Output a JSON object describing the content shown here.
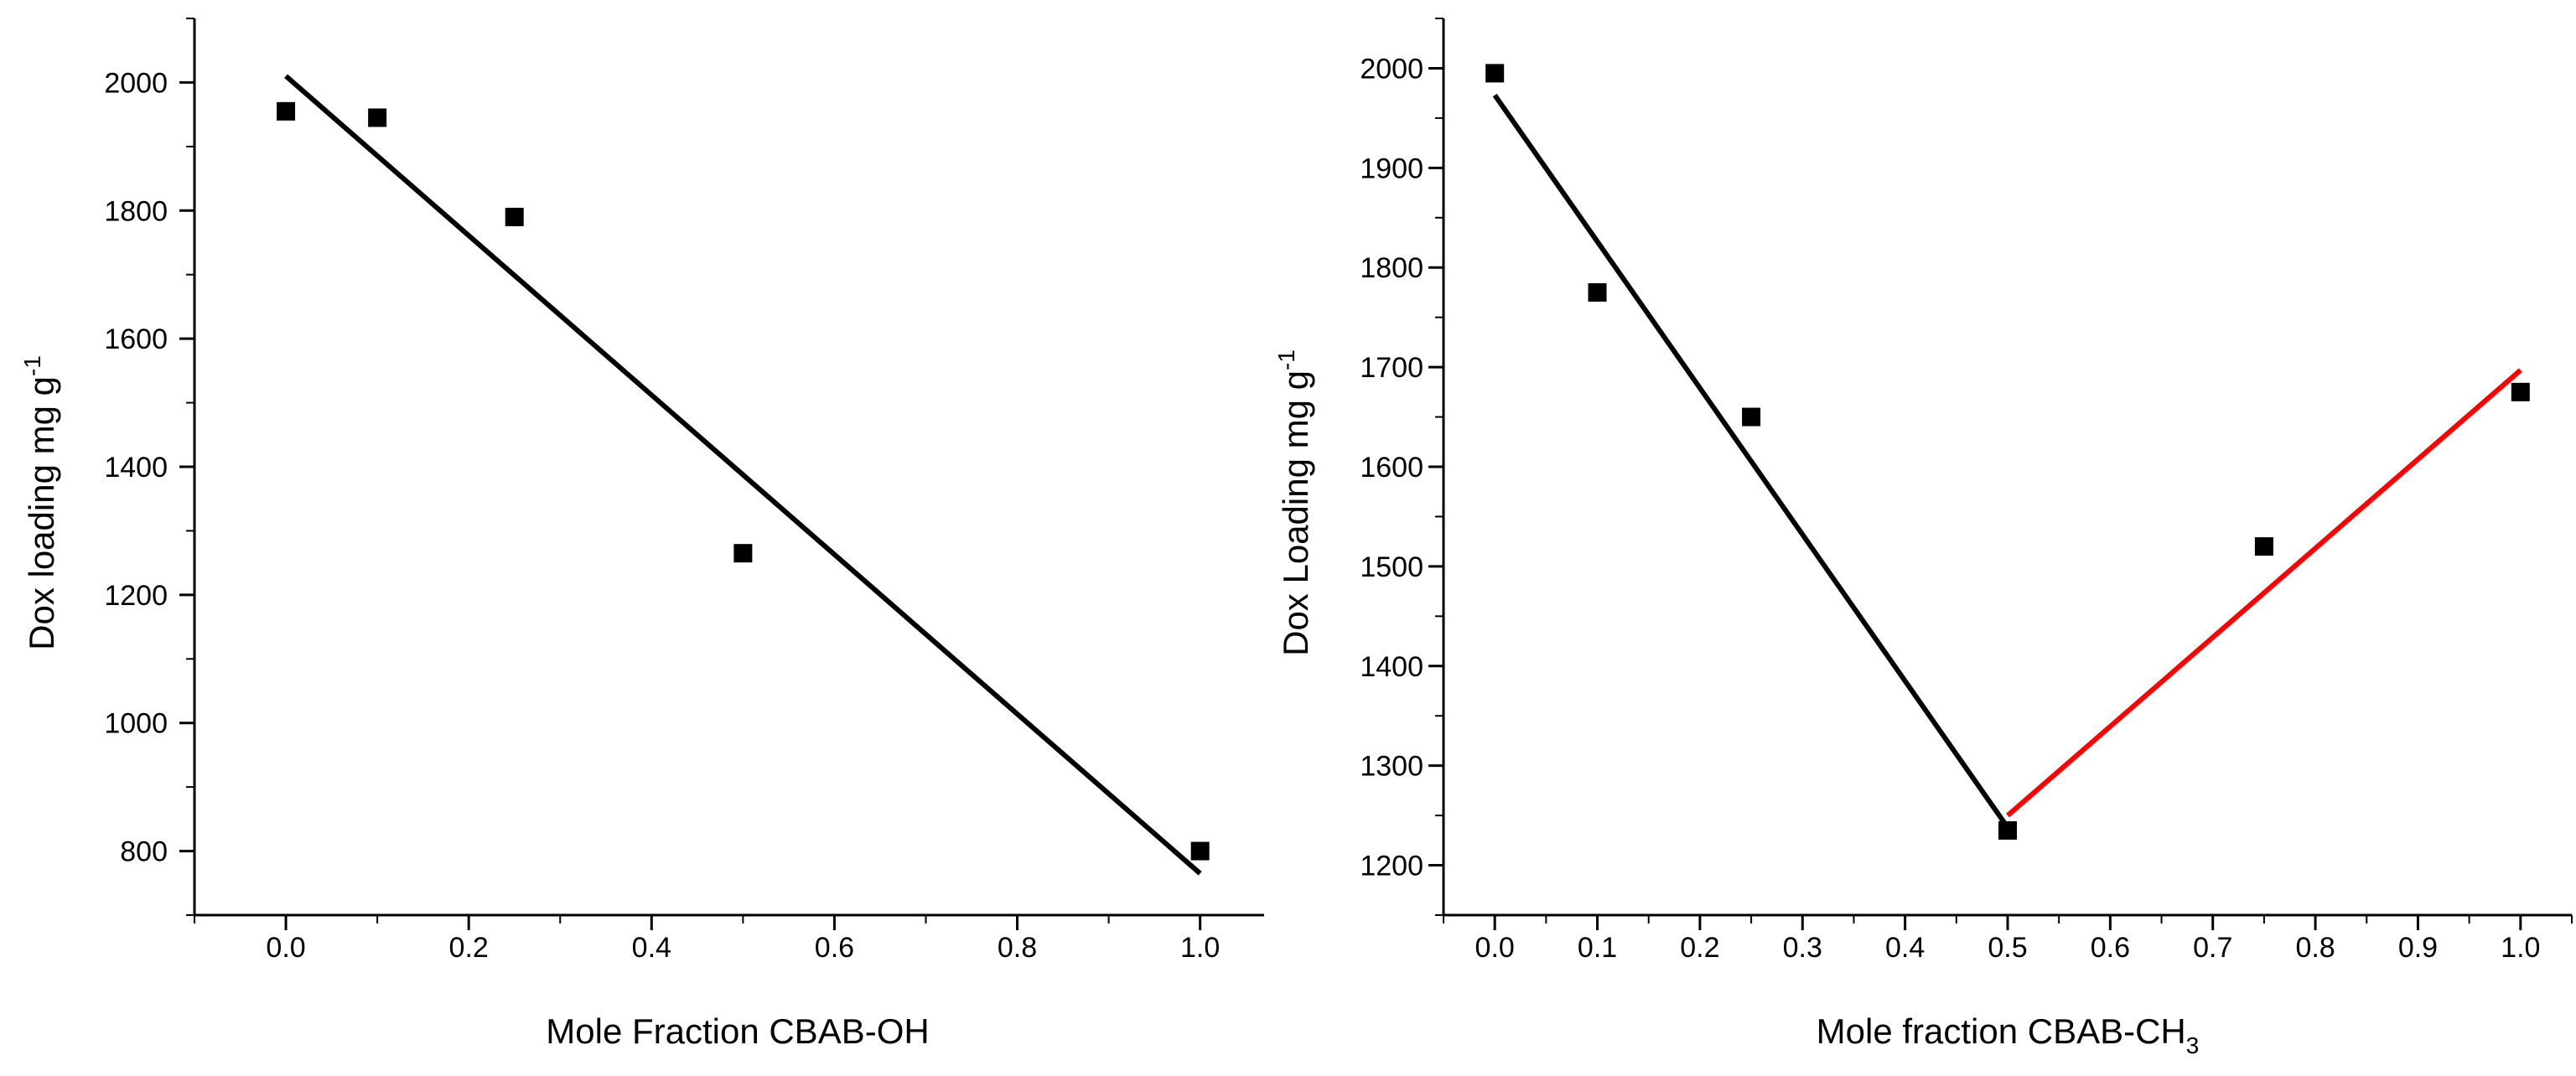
{
  "chart_data": [
    {
      "type": "scatter",
      "title": "",
      "xlabel": "Mole Fraction CBAB-OH",
      "ylabel_main": "Dox loading mg g",
      "ylabel_sup": "-1",
      "xlim": [
        -0.1,
        1.07
      ],
      "ylim": [
        700,
        2100
      ],
      "xticks": [
        0.0,
        0.2,
        0.4,
        0.6,
        0.8,
        1.0
      ],
      "xtick_labels": [
        "0.0",
        "0.2",
        "0.4",
        "0.6",
        "0.8",
        "1.0"
      ],
      "yticks": [
        800,
        1000,
        1200,
        1400,
        1600,
        1800,
        2000
      ],
      "ytick_labels": [
        "800",
        "1000",
        "1200",
        "1400",
        "1600",
        "1800",
        "2000"
      ],
      "series": [
        {
          "name": "Dox loading",
          "x": [
            0.0,
            0.1,
            0.25,
            0.5,
            1.0
          ],
          "y": [
            1955,
            1945,
            1790,
            1265,
            800
          ]
        }
      ],
      "fits": [
        {
          "name": "linear fit",
          "x": [
            0.0,
            1.0
          ],
          "y": [
            2010,
            765
          ],
          "color": "#000000"
        }
      ],
      "grid": false
    },
    {
      "type": "scatter",
      "title": "",
      "xlabel_main": "Mole fraction CBAB-CH",
      "xlabel_sub": "3",
      "ylabel_main": "Dox Loading mg g",
      "ylabel_sup": "-1",
      "xlim": [
        -0.05,
        1.05
      ],
      "ylim": [
        1150,
        2050
      ],
      "xticks": [
        0.0,
        0.1,
        0.2,
        0.3,
        0.4,
        0.5,
        0.6,
        0.7,
        0.8,
        0.9,
        1.0
      ],
      "xtick_labels": [
        "0.0",
        "0.1",
        "0.2",
        "0.3",
        "0.4",
        "0.5",
        "0.6",
        "0.7",
        "0.8",
        "0.9",
        "1.0"
      ],
      "yticks": [
        1200,
        1300,
        1400,
        1500,
        1600,
        1700,
        1800,
        1900,
        2000
      ],
      "ytick_labels": [
        "1200",
        "1300",
        "1400",
        "1500",
        "1600",
        "1700",
        "1800",
        "1900",
        "2000"
      ],
      "series": [
        {
          "name": "Dox Loading",
          "x": [
            0.0,
            0.1,
            0.25,
            0.5,
            0.75,
            1.0
          ],
          "y": [
            1995,
            1775,
            1650,
            1235,
            1520,
            1675
          ]
        }
      ],
      "fits": [
        {
          "name": "linear fit 0-0.5",
          "x": [
            0.0,
            0.5
          ],
          "y": [
            1973,
            1238
          ],
          "color": "#000000"
        },
        {
          "name": "linear fit 0.5-1",
          "x": [
            0.5,
            1.0
          ],
          "y": [
            1250,
            1697
          ],
          "color": "#ff0000"
        }
      ],
      "grid": false
    }
  ]
}
